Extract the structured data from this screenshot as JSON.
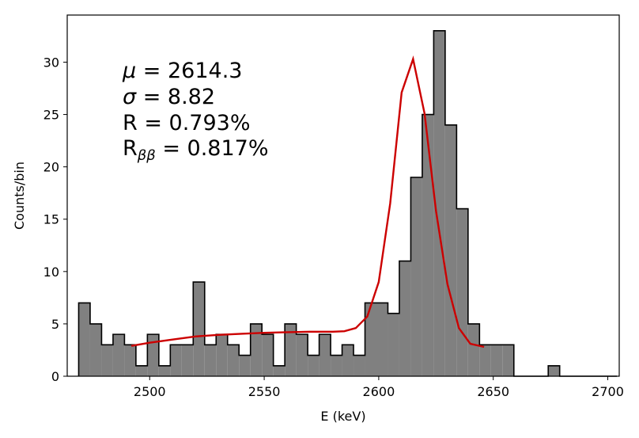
{
  "chart_data": {
    "type": "histogram",
    "xlabel": "E (keV)",
    "ylabel": "Counts/bin",
    "xlim": [
      2464,
      2705
    ],
    "ylim": [
      0,
      34.5
    ],
    "xticks": [
      2500,
      2550,
      2600,
      2650,
      2700
    ],
    "yticks": [
      0,
      5,
      10,
      15,
      20,
      25,
      30
    ],
    "bin_start": 2469,
    "bin_width": 5,
    "counts": [
      7,
      5,
      3,
      4,
      3,
      1,
      4,
      1,
      3,
      3,
      9,
      3,
      4,
      3,
      2,
      5,
      4,
      1,
      5,
      4,
      2,
      4,
      2,
      3,
      2,
      7,
      7,
      6,
      11,
      19,
      25,
      33,
      24,
      16,
      5,
      3,
      3,
      3,
      0,
      0,
      0,
      1,
      0,
      0,
      0,
      0,
      0
    ],
    "fit_curve": {
      "x": [
        2492,
        2500,
        2510,
        2520,
        2530,
        2540,
        2550,
        2560,
        2570,
        2580,
        2585,
        2590,
        2595,
        2600,
        2605,
        2610,
        2615,
        2620,
        2625,
        2630,
        2635,
        2640,
        2646
      ],
      "y": [
        2.9,
        3.2,
        3.5,
        3.8,
        3.95,
        4.05,
        4.15,
        4.2,
        4.25,
        4.25,
        4.3,
        4.6,
        5.7,
        9.0,
        16.5,
        27.1,
        30.3,
        25.1,
        15.8,
        8.8,
        4.6,
        3.1,
        2.8
      ]
    },
    "hist_fill_color": "#808080",
    "hist_edge_color": "#000000",
    "fit_color": "#cc0000",
    "annotations": {
      "mu_symbol": "μ",
      "mu_text": " = 2614.3",
      "sigma_symbol": "σ",
      "sigma_text": " = 8.82",
      "r_text": "R = 0.793%",
      "rbb_main": "R",
      "rbb_sub": "ββ",
      "rbb_text": " = 0.817%"
    }
  }
}
